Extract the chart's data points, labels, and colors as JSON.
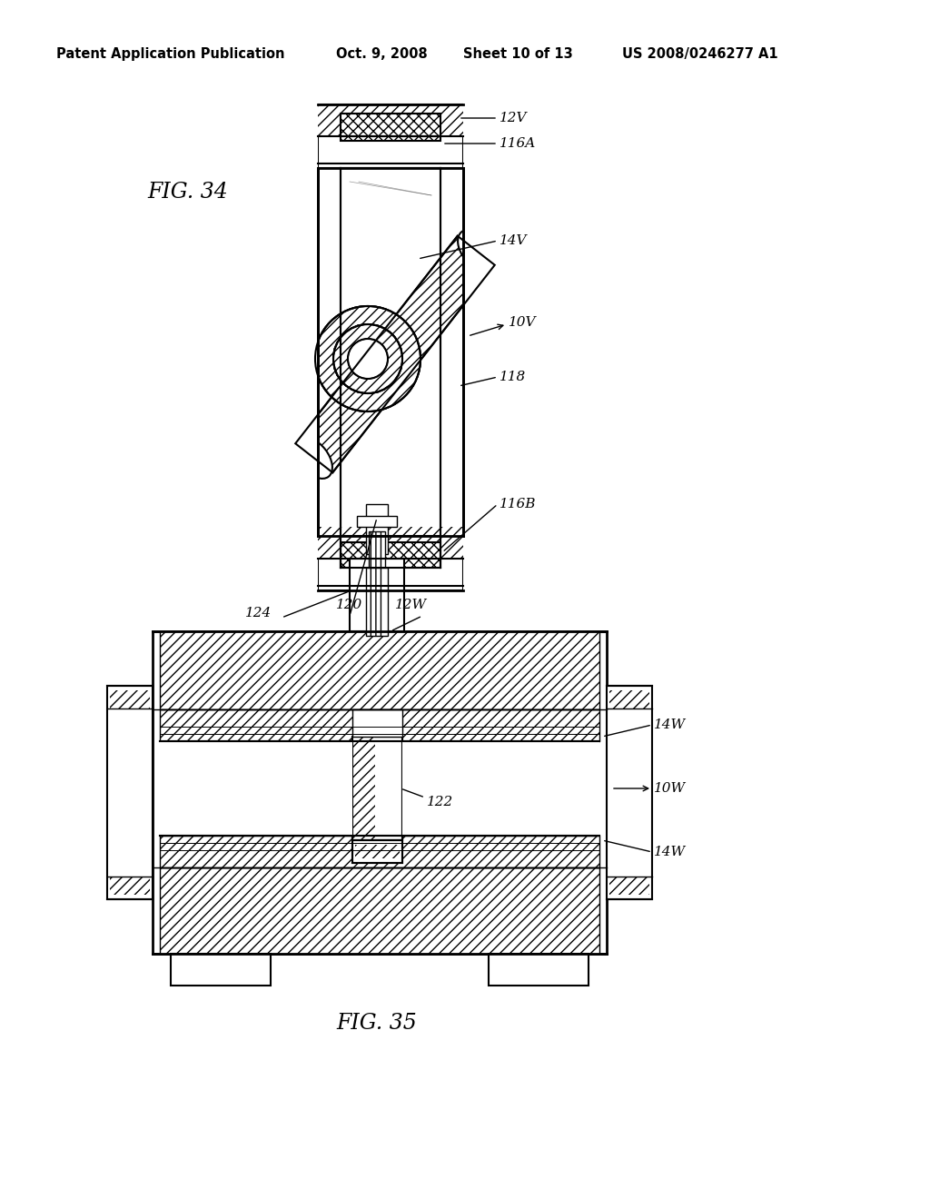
{
  "bg_color": "#ffffff",
  "header_text": "Patent Application Publication",
  "header_date": "Oct. 9, 2008",
  "header_sheet": "Sheet 10 of 13",
  "header_patent": "US 2008/0246277 A1",
  "fig34_label": "FIG. 34",
  "fig35_label": "FIG. 35"
}
